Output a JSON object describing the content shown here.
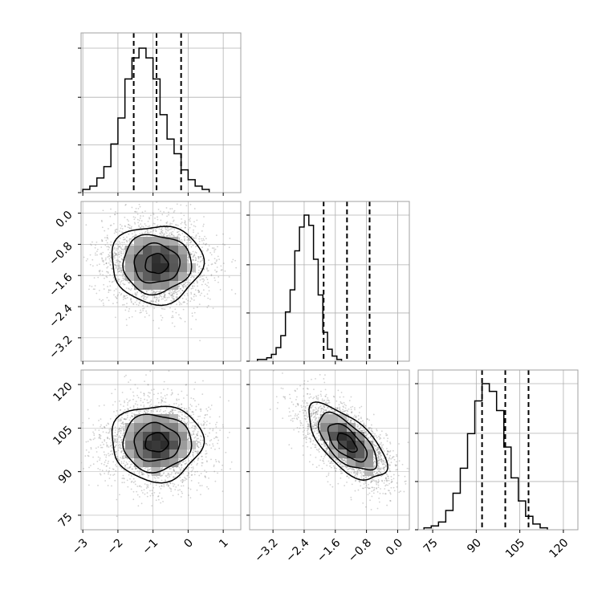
{
  "chart_data": [
    {
      "type": "histogram",
      "panel": "hist-param-0",
      "bin_edges_start": -3.0,
      "bin_width": 0.2,
      "counts": [
        2,
        4,
        9,
        16,
        30,
        46,
        70,
        83,
        89,
        83,
        70,
        48,
        33,
        24,
        14,
        8,
        4,
        2
      ],
      "quantiles": [
        -1.55,
        -0.9,
        -0.2
      ],
      "xlim": [
        -3.05,
        1.5
      ],
      "xticks": [
        -3,
        -2,
        -1,
        0,
        1
      ],
      "grid": true
    },
    {
      "type": "histogram",
      "panel": "hist-param-1",
      "bin_edges_start": -3.6,
      "bin_width": 0.12,
      "counts": [
        1,
        1,
        2,
        4,
        8,
        15,
        29,
        42,
        65,
        79,
        86,
        80,
        60,
        39,
        17,
        7,
        3,
        1
      ],
      "quantiles": [
        -1.9,
        -1.3,
        -0.72
      ],
      "xlim": [
        -3.8,
        0.3
      ],
      "xticks": [
        -3.2,
        -2.4,
        -1.6,
        -0.8,
        0.0
      ],
      "xtick_labels": [
        "−3.2",
        "−2.4",
        "−1.6",
        "−0.8",
        "0.0"
      ],
      "grid": true
    },
    {
      "type": "histogram",
      "panel": "hist-param-2",
      "bin_edges_start": 72.0,
      "bin_width": 2.5,
      "counts": [
        1,
        2,
        4,
        10,
        19,
        32,
        50,
        67,
        76,
        72,
        62,
        43,
        27,
        15,
        7,
        3,
        1
      ],
      "quantiles": [
        92.0,
        100.0,
        108.0
      ],
      "xlim": [
        70.0,
        125.0
      ],
      "xticks": [
        75,
        90,
        105,
        120
      ],
      "grid": true
    },
    {
      "type": "contour-scatter",
      "panel": "param-1-vs-param-0",
      "x_center": -0.9,
      "y_center": -1.3,
      "x_sd": 0.65,
      "y_sd": 0.5,
      "correlation": 0.0,
      "xlim": [
        -3.05,
        1.5
      ],
      "ylim": [
        -3.8,
        0.3
      ],
      "yticks": [
        0.0,
        -0.8,
        -1.6,
        -2.4,
        -3.2
      ],
      "ytick_labels": [
        "0.0",
        "−0.8",
        "−1.6",
        "−2.4",
        "−3.2"
      ],
      "grid": true
    },
    {
      "type": "contour-scatter",
      "panel": "param-2-vs-param-0",
      "x_center": -0.9,
      "y_center": 100.0,
      "x_sd": 0.65,
      "y_sd": 6.5,
      "correlation": 0.0,
      "xlim": [
        -3.05,
        1.5
      ],
      "ylim": [
        70.0,
        125.0
      ],
      "xticks": [
        -3,
        -2,
        -1,
        0,
        1
      ],
      "xtick_labels": [
        "−3",
        "−2",
        "−1",
        "0",
        "1"
      ],
      "yticks": [
        75,
        90,
        105,
        120
      ],
      "grid": true
    },
    {
      "type": "contour-scatter",
      "panel": "param-2-vs-param-1",
      "x_center": -1.3,
      "y_center": 100.0,
      "x_sd": 0.5,
      "y_sd": 6.5,
      "correlation": -0.65,
      "xlim": [
        -3.8,
        0.3
      ],
      "ylim": [
        70.0,
        125.0
      ],
      "xticks": [
        -3.2,
        -2.4,
        -1.6,
        -0.8,
        0.0
      ],
      "xtick_labels": [
        "−3.2",
        "−2.4",
        "−1.6",
        "−0.8",
        "0.0"
      ],
      "grid": true
    }
  ],
  "styles": {
    "line_color": "#000000",
    "grid_color": "#b0b0b0",
    "point_color": "#7f7f7f",
    "frame_color": "#a0a0a0"
  }
}
